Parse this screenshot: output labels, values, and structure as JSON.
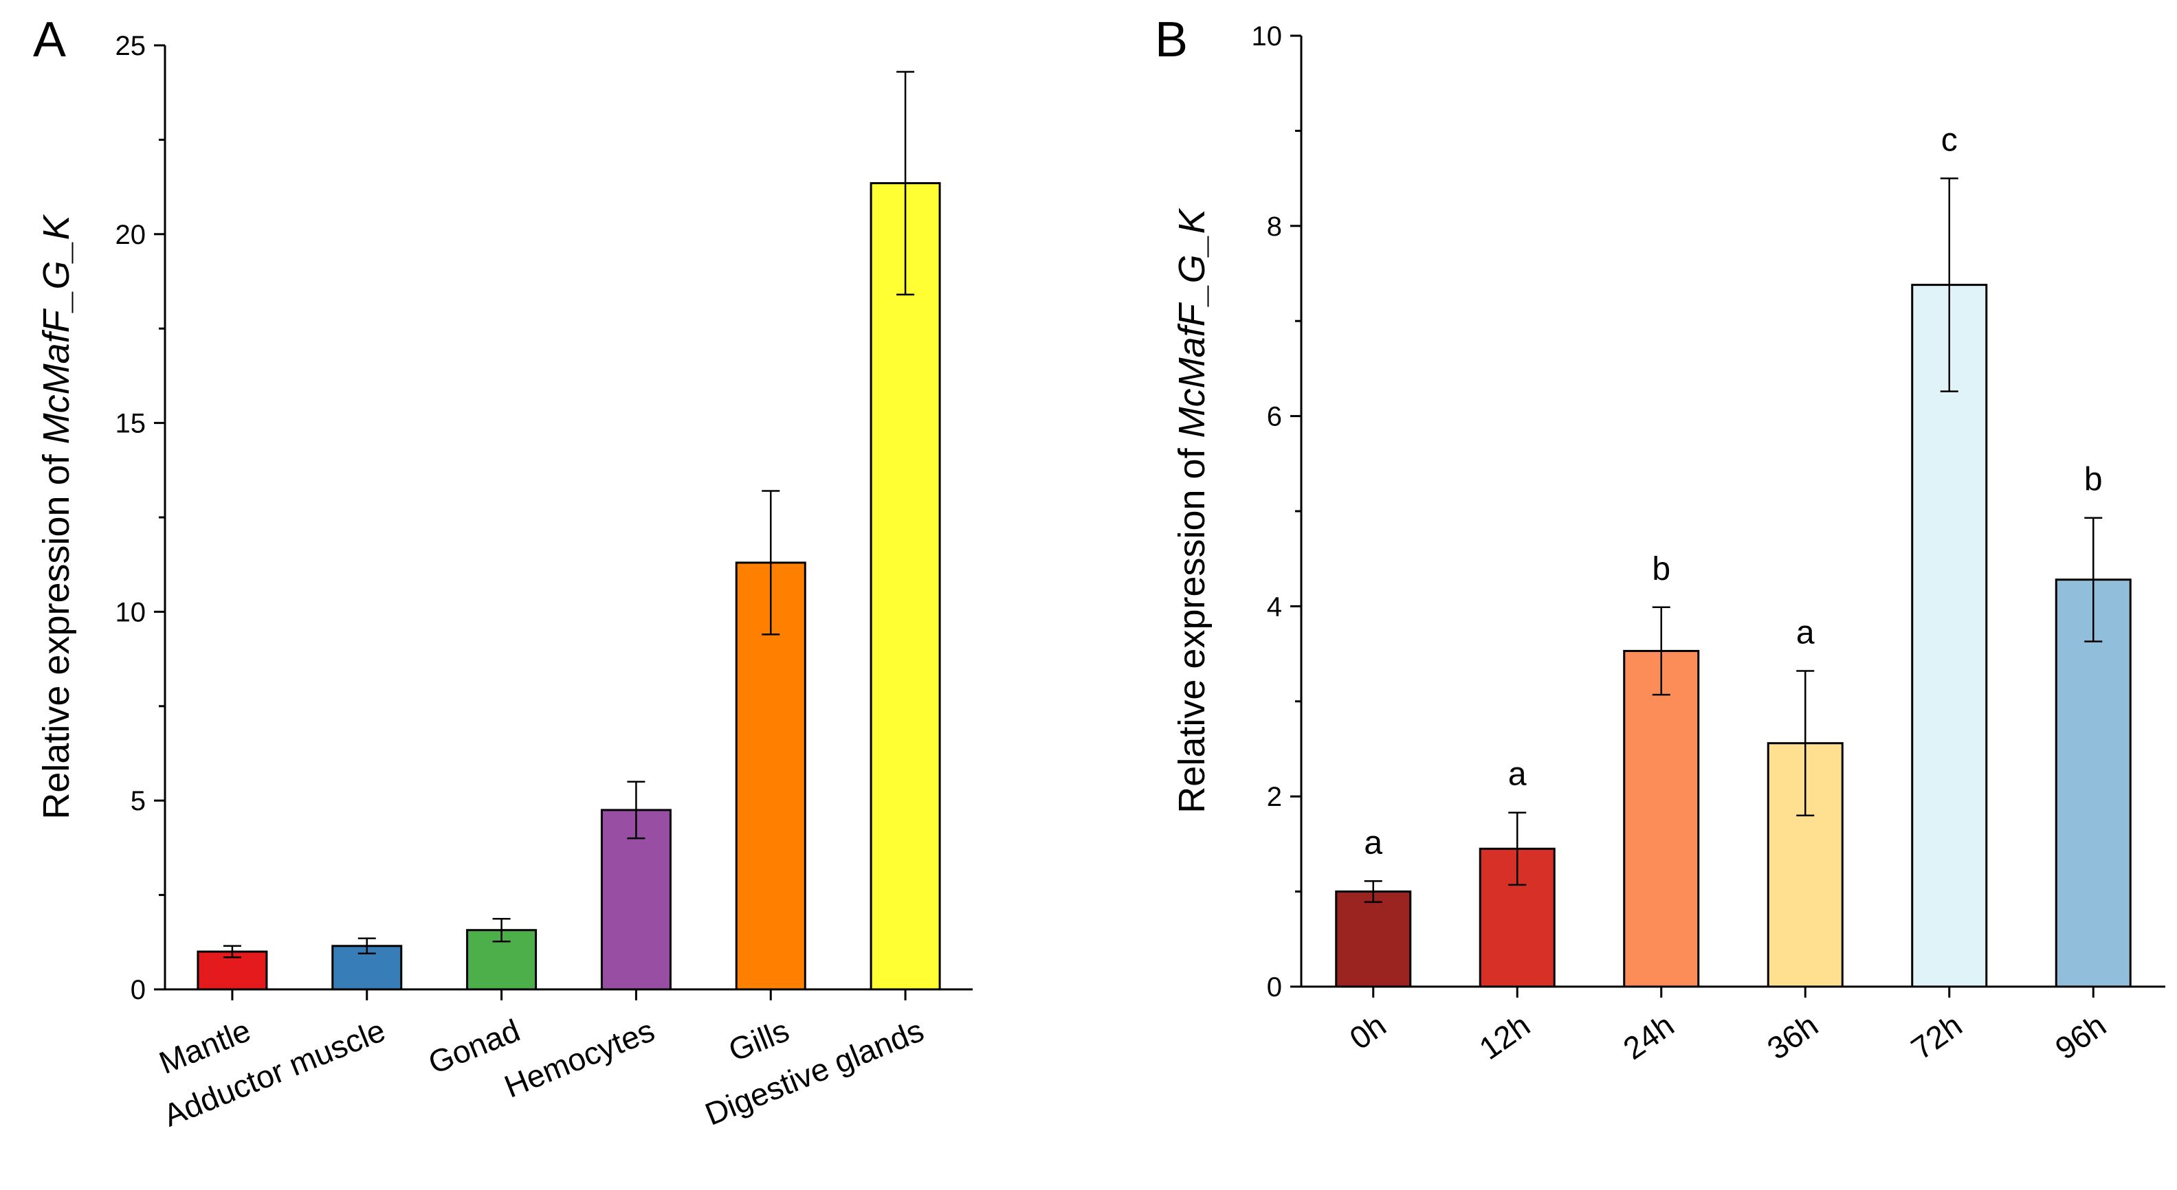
{
  "figure": {
    "panels": [
      "A",
      "B"
    ]
  },
  "chart_data": [
    {
      "panel": "A",
      "type": "bar",
      "title": "",
      "xlabel": "",
      "ylabel_prefix": "Relative expression of ",
      "ylabel_gene": "McMafF_G_K",
      "ylim": [
        0,
        25
      ],
      "yticks": [
        0,
        5,
        10,
        15,
        20,
        25
      ],
      "grid": false,
      "categories": [
        "Mantle",
        "Adductor muscle",
        "Gonad",
        "Hemocytes",
        "Gills",
        "Digestive glands"
      ],
      "values": [
        1.0,
        1.15,
        1.57,
        4.75,
        11.3,
        21.35
      ],
      "errors": [
        0.15,
        0.2,
        0.3,
        0.75,
        1.9,
        2.95
      ],
      "colors": [
        "#e41a1c",
        "#377eb8",
        "#4daf4a",
        "#984ea3",
        "#ff7f00",
        "#ffff33"
      ]
    },
    {
      "panel": "B",
      "type": "bar",
      "title": "",
      "xlabel": "",
      "ylabel_prefix": "Relative expression of ",
      "ylabel_gene": "McMafF_G_K",
      "ylim": [
        0,
        10
      ],
      "yticks": [
        0,
        2,
        4,
        6,
        8,
        10
      ],
      "grid": false,
      "categories": [
        "0h",
        "12h",
        "24h",
        "36h",
        "72h",
        "96h"
      ],
      "values": [
        1.0,
        1.45,
        3.53,
        2.56,
        7.38,
        4.28
      ],
      "errors": [
        0.11,
        0.38,
        0.46,
        0.76,
        1.12,
        0.65
      ],
      "significance": [
        "a",
        "a",
        "b",
        "a",
        "c",
        "b"
      ],
      "colors": [
        "#9b2320",
        "#d73027",
        "#fc8d59",
        "#fee090",
        "#e0f3f8",
        "#91bfdb"
      ]
    }
  ]
}
